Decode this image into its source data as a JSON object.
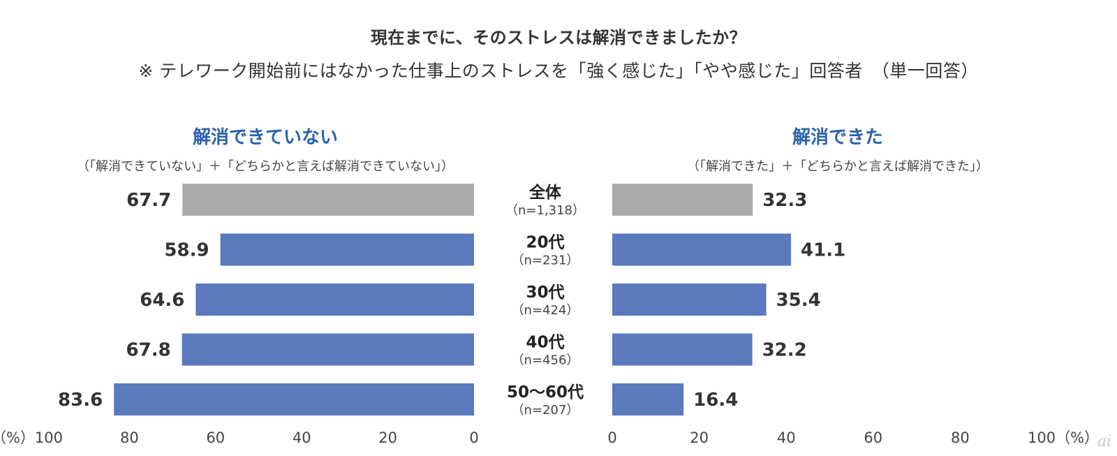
{
  "title": "現在までに、そのストレスは解消できましたか？",
  "subtitle": "※ テレワーク開始前にはなかった仕事上のストレスを「強く感じた」「やや感じた」回答者　（単一回答）",
  "watermark": "ai",
  "chart_data": {
    "type": "bar",
    "orientation": "horizontal-butterfly",
    "categories": [
      {
        "label": "全体",
        "n": "（n=1,318）"
      },
      {
        "label": "20代",
        "n": "（n=231）"
      },
      {
        "label": "30代",
        "n": "（n=424）"
      },
      {
        "label": "40代",
        "n": "（n=456）"
      },
      {
        "label": "50〜60代",
        "n": "（n=207）"
      }
    ],
    "series": [
      {
        "name": "解消できていない",
        "note": "（「解消できていない」＋「どちらかと言えば解消できていない」）",
        "side": "left",
        "values": [
          67.7,
          58.9,
          64.6,
          67.8,
          83.6
        ],
        "value_labels": [
          "67.7",
          "58.9",
          "64.6",
          "67.8",
          "83.6"
        ]
      },
      {
        "name": "解消できた",
        "note": "（「解消できた」＋「どちらかと言えば解消できた」）",
        "side": "right",
        "values": [
          32.3,
          41.1,
          35.4,
          32.2,
          16.4
        ],
        "value_labels": [
          "32.3",
          "41.1",
          "35.4",
          "32.2",
          "16.4"
        ]
      }
    ],
    "colors": {
      "highlight": "#aaaaaa",
      "bar": "#5b7abd",
      "heading": "#2a62ad"
    },
    "axis_range": [
      0,
      100
    ],
    "left_ticks": [
      "（%）100",
      "80",
      "60",
      "40",
      "20",
      "0"
    ],
    "right_ticks": [
      "0",
      "20",
      "40",
      "60",
      "80",
      "100（%）"
    ]
  }
}
